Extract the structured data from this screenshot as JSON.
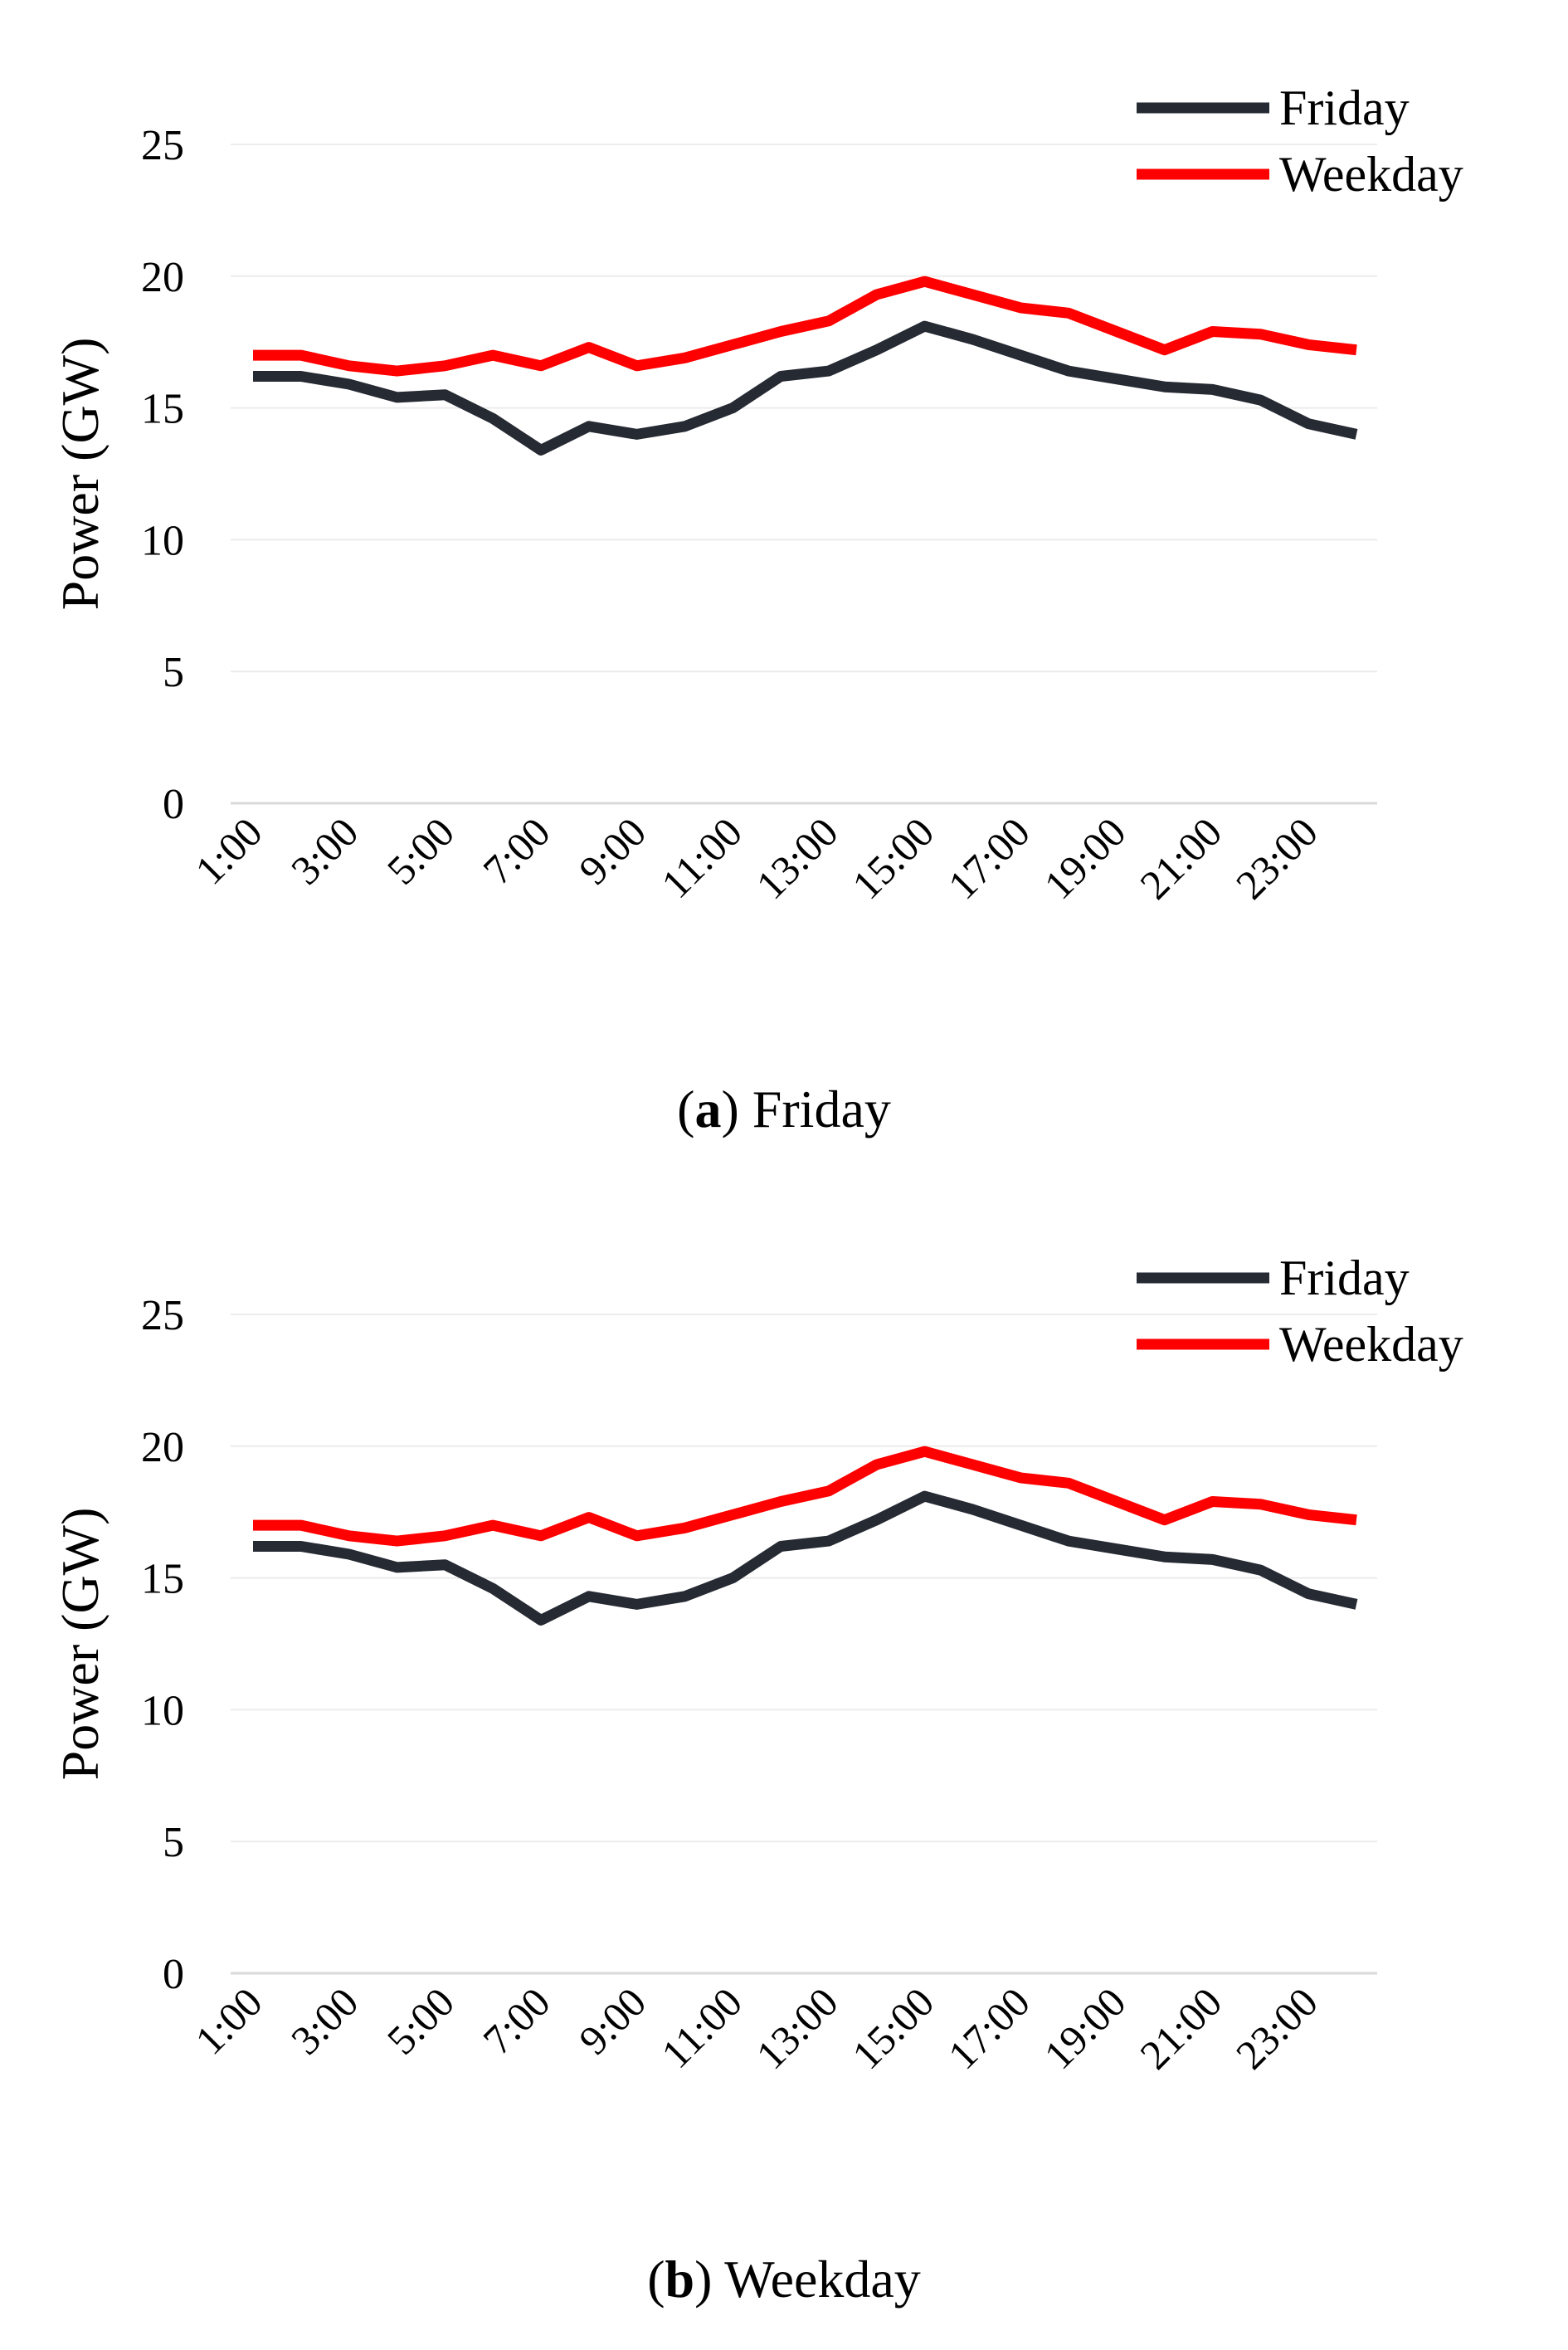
{
  "chart_data": [
    {
      "type": "line",
      "panel_label": "a",
      "caption": "Friday",
      "ylabel": "Power (GW)",
      "xlabel": "",
      "ylim": [
        0,
        25
      ],
      "yticks": [
        0,
        5,
        10,
        15,
        20,
        25
      ],
      "x": [
        "1:00",
        "2:00",
        "3:00",
        "4:00",
        "5:00",
        "6:00",
        "7:00",
        "8:00",
        "9:00",
        "10:00",
        "11:00",
        "12:00",
        "13:00",
        "14:00",
        "15:00",
        "16:00",
        "17:00",
        "18:00",
        "19:00",
        "20:00",
        "21:00",
        "22:00",
        "23:00",
        "24:00"
      ],
      "xtick_labels": [
        "1:00",
        "3:00",
        "5:00",
        "7:00",
        "9:00",
        "11:00",
        "13:00",
        "15:00",
        "17:00",
        "19:00",
        "21:00",
        "23:00"
      ],
      "grid": true,
      "legend_position": "top-right",
      "series": [
        {
          "name": "Friday",
          "color": "#262a33",
          "values": [
            16.2,
            16.2,
            15.9,
            15.4,
            15.5,
            14.6,
            13.4,
            14.3,
            14.0,
            14.3,
            15.0,
            16.2,
            16.4,
            17.2,
            18.1,
            17.6,
            17.0,
            16.4,
            16.1,
            15.8,
            15.7,
            15.3,
            14.4,
            14.0
          ]
        },
        {
          "name": "Weekday",
          "color": "#ff0000",
          "values": [
            17.0,
            17.0,
            16.6,
            16.4,
            16.6,
            17.0,
            16.6,
            17.3,
            16.6,
            16.9,
            17.4,
            17.9,
            18.3,
            19.3,
            19.8,
            19.3,
            18.8,
            18.6,
            17.9,
            17.2,
            17.9,
            17.8,
            17.4,
            17.2
          ]
        }
      ]
    },
    {
      "type": "line",
      "panel_label": "b",
      "caption": "Weekday",
      "ylabel": "Power (GW)",
      "xlabel": "",
      "ylim": [
        0,
        25
      ],
      "yticks": [
        0,
        5,
        10,
        15,
        20,
        25
      ],
      "x": [
        "1:00",
        "2:00",
        "3:00",
        "4:00",
        "5:00",
        "6:00",
        "7:00",
        "8:00",
        "9:00",
        "10:00",
        "11:00",
        "12:00",
        "13:00",
        "14:00",
        "15:00",
        "16:00",
        "17:00",
        "18:00",
        "19:00",
        "20:00",
        "21:00",
        "22:00",
        "23:00",
        "24:00"
      ],
      "xtick_labels": [
        "1:00",
        "3:00",
        "5:00",
        "7:00",
        "9:00",
        "11:00",
        "13:00",
        "15:00",
        "17:00",
        "19:00",
        "21:00",
        "23:00"
      ],
      "grid": true,
      "legend_position": "top-right",
      "series": [
        {
          "name": "Friday",
          "color": "#262a33",
          "values": [
            16.2,
            16.2,
            15.9,
            15.4,
            15.5,
            14.6,
            13.4,
            14.3,
            14.0,
            14.3,
            15.0,
            16.2,
            16.4,
            17.2,
            18.1,
            17.6,
            17.0,
            16.4,
            16.1,
            15.8,
            15.7,
            15.3,
            14.4,
            14.0
          ]
        },
        {
          "name": "Weekday",
          "color": "#ff0000",
          "values": [
            17.0,
            17.0,
            16.6,
            16.4,
            16.6,
            17.0,
            16.6,
            17.3,
            16.6,
            16.9,
            17.4,
            17.9,
            18.3,
            19.3,
            19.8,
            19.3,
            18.8,
            18.6,
            17.9,
            17.2,
            17.9,
            17.8,
            17.4,
            17.2
          ]
        }
      ]
    }
  ]
}
